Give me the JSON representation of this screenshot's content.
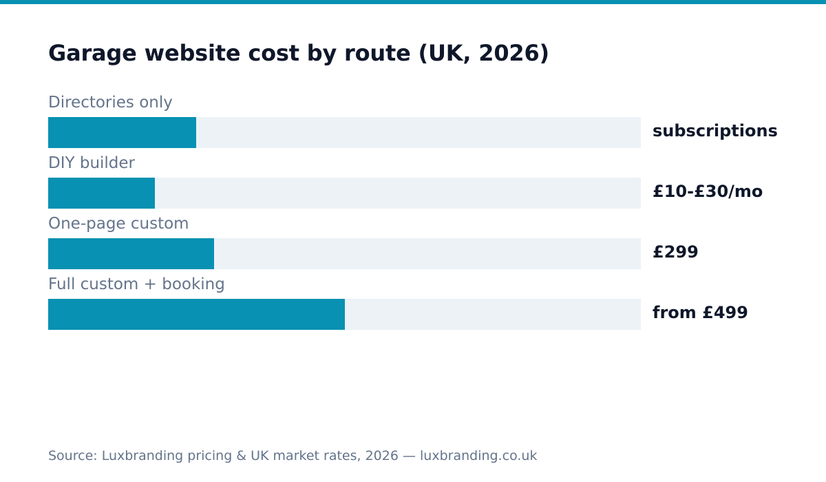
{
  "colors": {
    "accent": "#0891b2",
    "track": "#edf2f7",
    "title": "#0f172a",
    "muted": "#64748b"
  },
  "chart_data": {
    "type": "bar",
    "orientation": "horizontal",
    "title": "Garage website cost by route (UK, 2026)",
    "categories": [
      "Directories only",
      "DIY builder",
      "One-page custom",
      "Full custom + booking"
    ],
    "values": [
      0.25,
      0.18,
      0.28,
      0.5
    ],
    "value_labels": [
      "subscriptions",
      "£10-£30/mo",
      "£299",
      "from £499"
    ],
    "xlim": [
      0,
      1
    ],
    "grid": false,
    "legend": "none"
  },
  "footer": {
    "source": "Source: Luxbranding pricing & UK market rates, 2026 — luxbranding.co.uk"
  }
}
